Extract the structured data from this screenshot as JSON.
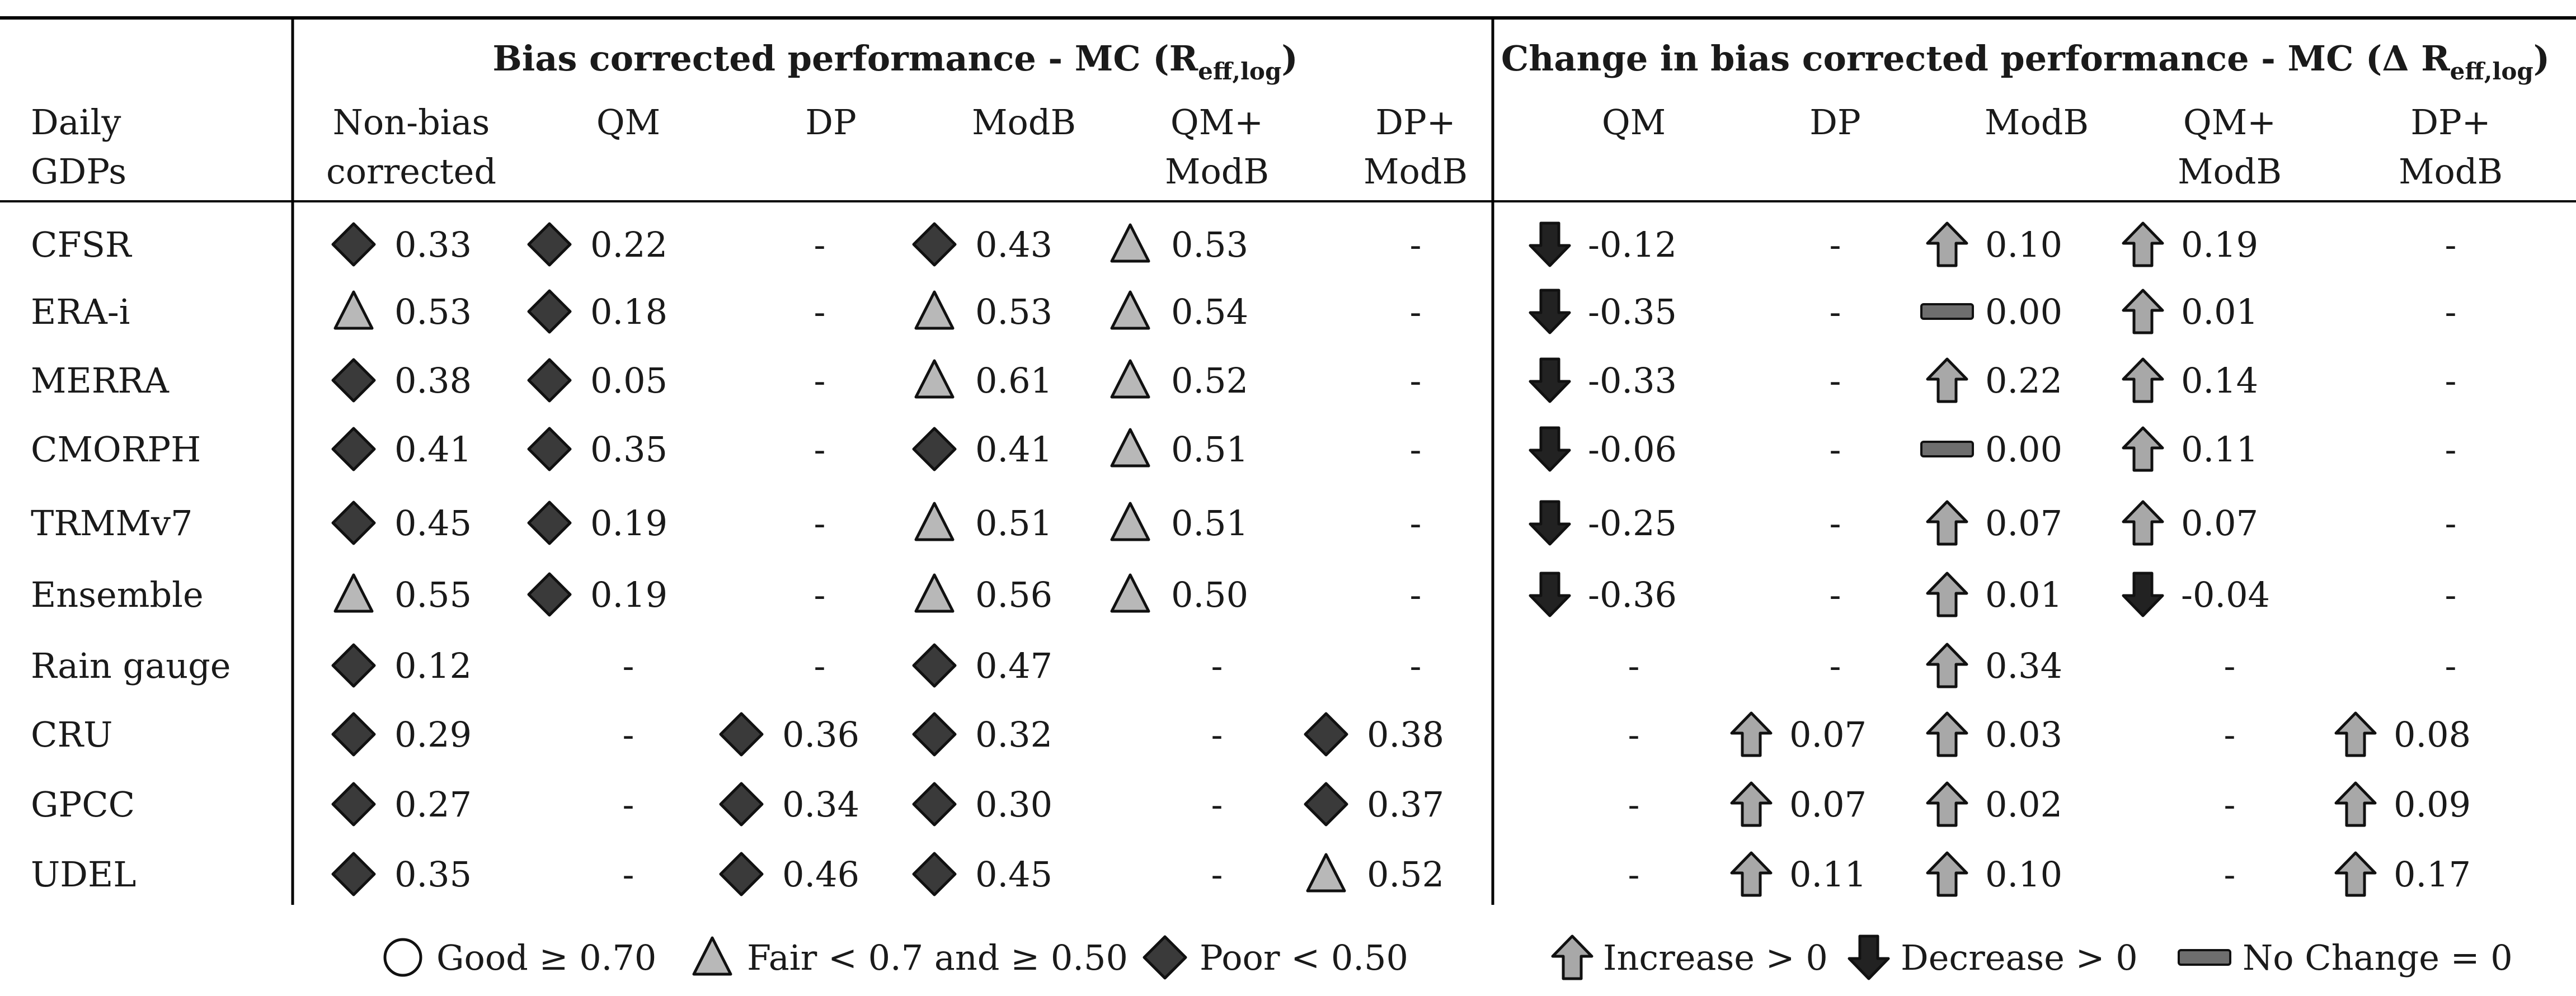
{
  "headers": {
    "group1": "Bias corrected performance - MC (R",
    "group1_sub": "eff,log",
    "group1_close": ")",
    "group2": "Change in bias corrected performance - MC (Δ R",
    "group2_sub": "eff,log",
    "group2_close": ")",
    "row_header": [
      "Daily",
      "GDPs"
    ],
    "perf_cols": [
      [
        "Non-bias",
        "corrected"
      ],
      [
        "QM"
      ],
      [
        "DP"
      ],
      [
        "ModB"
      ],
      [
        "QM+",
        "ModB"
      ],
      [
        "DP+",
        "ModB"
      ]
    ],
    "change_cols": [
      [
        "QM"
      ],
      [
        "DP"
      ],
      [
        "ModB"
      ],
      [
        "QM+",
        "ModB"
      ],
      [
        "DP+",
        "ModB"
      ]
    ]
  },
  "rows": [
    {
      "name": "CFSR",
      "perf": [
        {
          "s": "diamond",
          "v": "0.33"
        },
        {
          "s": "diamond",
          "v": "0.22"
        },
        {
          "s": "",
          "v": "-"
        },
        {
          "s": "diamond",
          "v": "0.43"
        },
        {
          "s": "triangle",
          "v": "0.53"
        },
        {
          "s": "",
          "v": "-"
        }
      ],
      "change": [
        {
          "s": "down",
          "v": "-0.12"
        },
        {
          "s": "",
          "v": "-"
        },
        {
          "s": "up",
          "v": "0.10"
        },
        {
          "s": "up",
          "v": "0.19"
        },
        {
          "s": "",
          "v": "-"
        }
      ]
    },
    {
      "name": "ERA-i",
      "perf": [
        {
          "s": "triangle",
          "v": "0.53"
        },
        {
          "s": "diamond",
          "v": "0.18"
        },
        {
          "s": "",
          "v": "-"
        },
        {
          "s": "triangle",
          "v": "0.53"
        },
        {
          "s": "triangle",
          "v": "0.54"
        },
        {
          "s": "",
          "v": "-"
        }
      ],
      "change": [
        {
          "s": "down",
          "v": "-0.35"
        },
        {
          "s": "",
          "v": "-"
        },
        {
          "s": "flat",
          "v": "0.00"
        },
        {
          "s": "up",
          "v": "0.01"
        },
        {
          "s": "",
          "v": "-"
        }
      ]
    },
    {
      "name": "MERRA",
      "perf": [
        {
          "s": "diamond",
          "v": "0.38"
        },
        {
          "s": "diamond",
          "v": "0.05"
        },
        {
          "s": "",
          "v": "-"
        },
        {
          "s": "triangle",
          "v": "0.61"
        },
        {
          "s": "triangle",
          "v": "0.52"
        },
        {
          "s": "",
          "v": "-"
        }
      ],
      "change": [
        {
          "s": "down",
          "v": "-0.33"
        },
        {
          "s": "",
          "v": "-"
        },
        {
          "s": "up",
          "v": "0.22"
        },
        {
          "s": "up",
          "v": "0.14"
        },
        {
          "s": "",
          "v": "-"
        }
      ]
    },
    {
      "name": "CMORPH",
      "perf": [
        {
          "s": "diamond",
          "v": "0.41"
        },
        {
          "s": "diamond",
          "v": "0.35"
        },
        {
          "s": "",
          "v": "-"
        },
        {
          "s": "diamond",
          "v": "0.41"
        },
        {
          "s": "triangle",
          "v": "0.51"
        },
        {
          "s": "",
          "v": "-"
        }
      ],
      "change": [
        {
          "s": "down",
          "v": "-0.06"
        },
        {
          "s": "",
          "v": "-"
        },
        {
          "s": "flat",
          "v": "0.00"
        },
        {
          "s": "up",
          "v": "0.11"
        },
        {
          "s": "",
          "v": "-"
        }
      ]
    },
    {
      "name": "TRMMv7",
      "perf": [
        {
          "s": "diamond",
          "v": "0.45"
        },
        {
          "s": "diamond",
          "v": "0.19"
        },
        {
          "s": "",
          "v": "-"
        },
        {
          "s": "triangle",
          "v": "0.51"
        },
        {
          "s": "triangle",
          "v": "0.51"
        },
        {
          "s": "",
          "v": "-"
        }
      ],
      "change": [
        {
          "s": "down",
          "v": "-0.25"
        },
        {
          "s": "",
          "v": "-"
        },
        {
          "s": "up",
          "v": "0.07"
        },
        {
          "s": "up",
          "v": "0.07"
        },
        {
          "s": "",
          "v": "-"
        }
      ]
    },
    {
      "name": "Ensemble",
      "perf": [
        {
          "s": "triangle",
          "v": "0.55"
        },
        {
          "s": "diamond",
          "v": "0.19"
        },
        {
          "s": "",
          "v": "-"
        },
        {
          "s": "triangle",
          "v": "0.56"
        },
        {
          "s": "triangle",
          "v": "0.50"
        },
        {
          "s": "",
          "v": "-"
        }
      ],
      "change": [
        {
          "s": "down",
          "v": "-0.36"
        },
        {
          "s": "",
          "v": "-"
        },
        {
          "s": "up",
          "v": "0.01"
        },
        {
          "s": "down",
          "v": "-0.04"
        },
        {
          "s": "",
          "v": "-"
        }
      ]
    },
    {
      "name": "Rain gauge",
      "perf": [
        {
          "s": "diamond",
          "v": "0.12"
        },
        {
          "s": "",
          "v": "-"
        },
        {
          "s": "",
          "v": "-"
        },
        {
          "s": "diamond",
          "v": "0.47"
        },
        {
          "s": "",
          "v": "-"
        },
        {
          "s": "",
          "v": "-"
        }
      ],
      "change": [
        {
          "s": "",
          "v": "-"
        },
        {
          "s": "",
          "v": "-"
        },
        {
          "s": "up",
          "v": "0.34"
        },
        {
          "s": "",
          "v": "-"
        },
        {
          "s": "",
          "v": "-"
        }
      ]
    },
    {
      "name": "CRU",
      "perf": [
        {
          "s": "diamond",
          "v": "0.29"
        },
        {
          "s": "",
          "v": "-"
        },
        {
          "s": "diamond",
          "v": "0.36"
        },
        {
          "s": "diamond",
          "v": "0.32"
        },
        {
          "s": "",
          "v": "-"
        },
        {
          "s": "diamond",
          "v": "0.38"
        }
      ],
      "change": [
        {
          "s": "",
          "v": "-"
        },
        {
          "s": "up",
          "v": "0.07"
        },
        {
          "s": "up",
          "v": "0.03"
        },
        {
          "s": "",
          "v": "-"
        },
        {
          "s": "up",
          "v": "0.08"
        }
      ]
    },
    {
      "name": "GPCC",
      "perf": [
        {
          "s": "diamond",
          "v": "0.27"
        },
        {
          "s": "",
          "v": "-"
        },
        {
          "s": "diamond",
          "v": "0.34"
        },
        {
          "s": "diamond",
          "v": "0.30"
        },
        {
          "s": "",
          "v": "-"
        },
        {
          "s": "diamond",
          "v": "0.37"
        }
      ],
      "change": [
        {
          "s": "",
          "v": "-"
        },
        {
          "s": "up",
          "v": "0.07"
        },
        {
          "s": "up",
          "v": "0.02"
        },
        {
          "s": "",
          "v": "-"
        },
        {
          "s": "up",
          "v": "0.09"
        }
      ]
    },
    {
      "name": "UDEL",
      "perf": [
        {
          "s": "diamond",
          "v": "0.35"
        },
        {
          "s": "",
          "v": "-"
        },
        {
          "s": "diamond",
          "v": "0.46"
        },
        {
          "s": "diamond",
          "v": "0.45"
        },
        {
          "s": "",
          "v": "-"
        },
        {
          "s": "triangle",
          "v": "0.52"
        }
      ],
      "change": [
        {
          "s": "",
          "v": "-"
        },
        {
          "s": "up",
          "v": "0.11"
        },
        {
          "s": "up",
          "v": "0.10"
        },
        {
          "s": "",
          "v": "-"
        },
        {
          "s": "up",
          "v": "0.17"
        }
      ]
    }
  ],
  "legend": {
    "perf": [
      {
        "s": "circle",
        "label": "Good ≥ 0.70"
      },
      {
        "s": "triangle",
        "label": "Fair < 0.7 and ≥ 0.50"
      },
      {
        "s": "diamond",
        "label": "Poor < 0.50"
      }
    ],
    "change": [
      {
        "s": "up",
        "label": "Increase > 0"
      },
      {
        "s": "down",
        "label": "Decrease > 0"
      },
      {
        "s": "flat",
        "label": "No Change = 0"
      }
    ]
  },
  "colors": {
    "poor": "#3a3a3a",
    "fair": "#b8b8b8",
    "good": "#ffffff",
    "increase": "#a8a8a8",
    "decrease": "#222222",
    "nochange": "#6e6e6e",
    "stroke": "#111111"
  }
}
